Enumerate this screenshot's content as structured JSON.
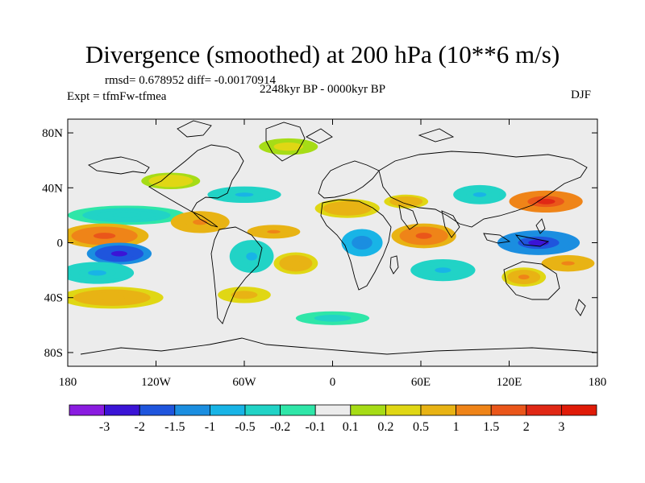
{
  "title": "Divergence (smoothed) at 200 hPa (10**6 m/s)",
  "stats": "rmsd= 0.678952 diff= -0.00170914",
  "experiment": "Expt = tfmFw-tfmea",
  "period": "2248kyr BP - 0000kyr BP",
  "season": "DJF",
  "map": {
    "lon_range": [
      -180,
      180
    ],
    "lat_range": [
      -90,
      90
    ],
    "lat_ticks": [
      {
        "value": 80,
        "label": "80N"
      },
      {
        "value": 40,
        "label": "40N"
      },
      {
        "value": 0,
        "label": "0"
      },
      {
        "value": -40,
        "label": "40S"
      },
      {
        "value": -80,
        "label": "80S"
      }
    ],
    "lon_ticks": [
      {
        "value": -180,
        "label": "180"
      },
      {
        "value": -120,
        "label": "120W"
      },
      {
        "value": -60,
        "label": "60W"
      },
      {
        "value": 0,
        "label": "0"
      },
      {
        "value": 60,
        "label": "60E"
      },
      {
        "value": 120,
        "label": "120E"
      },
      {
        "value": 180,
        "label": "180"
      }
    ],
    "features": [
      {
        "name": "north-pacific-convergence",
        "lon": -140,
        "lat": 20,
        "rlon": 40,
        "rlat": 7,
        "value": -0.4
      },
      {
        "name": "east-pacific-divergence",
        "lon": -155,
        "lat": 5,
        "rlon": 30,
        "rlat": 9,
        "value": 1.6
      },
      {
        "name": "east-pacific-strong-convergence",
        "lon": -145,
        "lat": -8,
        "rlon": 22,
        "rlat": 8,
        "value": -2.4
      },
      {
        "name": "south-pacific-convergence",
        "lon": -160,
        "lat": -22,
        "rlon": 25,
        "rlat": 8,
        "value": -0.6
      },
      {
        "name": "southeast-pacific-divergence",
        "lon": -150,
        "lat": -40,
        "rlon": 35,
        "rlat": 8,
        "value": 0.8
      },
      {
        "name": "central-america-divergence",
        "lon": -90,
        "lat": 15,
        "rlon": 20,
        "rlat": 8,
        "value": 1.2
      },
      {
        "name": "north-america-divergence",
        "lon": -110,
        "lat": 45,
        "rlon": 20,
        "rlat": 6,
        "value": 0.4
      },
      {
        "name": "north-atlantic-convergence",
        "lon": -60,
        "lat": 35,
        "rlon": 25,
        "rlat": 6,
        "value": -0.6
      },
      {
        "name": "amazon-convergence",
        "lon": -55,
        "lat": -10,
        "rlon": 15,
        "rlat": 12,
        "value": -0.6
      },
      {
        "name": "south-atlantic-divergence",
        "lon": -25,
        "lat": -15,
        "rlon": 15,
        "rlat": 8,
        "value": 0.9
      },
      {
        "name": "south-america-divergence",
        "lon": -60,
        "lat": -38,
        "rlon": 18,
        "rlat": 6,
        "value": 0.7
      },
      {
        "name": "tropical-atlantic-divergence",
        "lon": -40,
        "lat": 8,
        "rlon": 18,
        "rlat": 5,
        "value": 1.1
      },
      {
        "name": "africa-convergence",
        "lon": 20,
        "lat": 0,
        "rlon": 14,
        "rlat": 10,
        "value": -1.4
      },
      {
        "name": "sahara-divergence",
        "lon": 10,
        "lat": 25,
        "rlon": 22,
        "rlat": 7,
        "value": 0.9
      },
      {
        "name": "indian-ocean-divergence",
        "lon": 62,
        "lat": 5,
        "rlon": 22,
        "rlat": 9,
        "value": 1.6
      },
      {
        "name": "south-indian-convergence",
        "lon": 75,
        "lat": -20,
        "rlon": 22,
        "rlat": 8,
        "value": -0.6
      },
      {
        "name": "maritime-continent-convergence",
        "lon": 140,
        "lat": 0,
        "rlon": 28,
        "rlat": 9,
        "value": -2.3
      },
      {
        "name": "north-west-pacific-divergence",
        "lon": 145,
        "lat": 30,
        "rlon": 25,
        "rlat": 8,
        "value": 2.2
      },
      {
        "name": "asia-convergence",
        "lon": 100,
        "lat": 35,
        "rlon": 18,
        "rlat": 7,
        "value": -0.6
      },
      {
        "name": "arabia-divergence",
        "lon": 50,
        "lat": 30,
        "rlon": 15,
        "rlat": 5,
        "value": 0.8
      },
      {
        "name": "australia-divergence",
        "lon": 130,
        "lat": -25,
        "rlon": 15,
        "rlat": 7,
        "value": 1.0
      },
      {
        "name": "south-pacific-east-divergence",
        "lon": 160,
        "lat": -15,
        "rlon": 18,
        "rlat": 6,
        "value": 1.1
      },
      {
        "name": "arctic-patch",
        "lon": -30,
        "lat": 70,
        "rlon": 20,
        "rlat": 6,
        "value": 0.3
      },
      {
        "name": "southern-ocean-patch",
        "lon": 0,
        "lat": -55,
        "rlon": 25,
        "rlat": 5,
        "value": -0.3
      }
    ]
  },
  "colorbar": {
    "levels": [
      "-3",
      "-2",
      "-1.5",
      "-1",
      "-0.5",
      "-0.2",
      "-0.1",
      "0.1",
      "0.2",
      "0.5",
      "1",
      "1.5",
      "2",
      "3"
    ],
    "colors": [
      "#8a1ce0",
      "#3b14d6",
      "#1f55dd",
      "#1b8ee0",
      "#18b4e6",
      "#21d3c6",
      "#2fe6a8",
      "#ececec",
      "#a6dc16",
      "#e0d714",
      "#e8b314",
      "#ef8418",
      "#ea561a",
      "#e02815",
      "#e01b08"
    ]
  },
  "land_color": "#000000",
  "missing_color": "#ececec"
}
